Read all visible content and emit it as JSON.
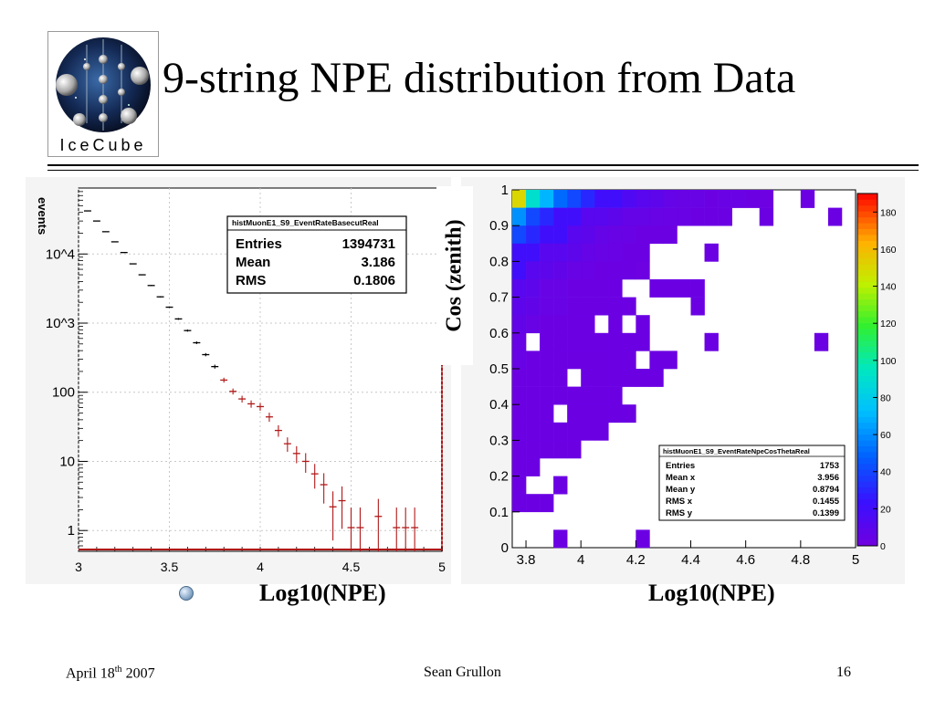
{
  "slide": {
    "title": "9-string NPE distribution from Data",
    "logo_text": "IceCube",
    "footer": {
      "date_main": "April 18",
      "date_sup": "th",
      "date_year": " 2007",
      "author": "Sean Grullon",
      "page": "16"
    },
    "bullet_label": "Log10(NPE)",
    "right_xlabel": "Log10(NPE)",
    "right_ylabel": "Cos (zenith)"
  },
  "chart_data": [
    {
      "type": "scatter",
      "yscale": "log",
      "ylabel": "events",
      "xlim": [
        3,
        5
      ],
      "ylim": [
        0.5,
        90000
      ],
      "xticks": [
        "3",
        "3.5",
        "4",
        "4.5",
        "5"
      ],
      "yticks": [
        {
          "value": 10000,
          "label": "10^4"
        },
        {
          "value": 1000,
          "label": "10^3"
        },
        {
          "value": 100,
          "label": "100"
        },
        {
          "value": 10,
          "label": "10"
        },
        {
          "value": 1,
          "label": "1"
        }
      ],
      "grid": true,
      "stats": {
        "name": "histMuonE1_S9_EventRateBasecutReal",
        "rows": [
          {
            "key": "Entries",
            "value": "1394731"
          },
          {
            "key": "Mean",
            "value": "3.186"
          },
          {
            "key": "RMS",
            "value": "0.1806"
          }
        ]
      },
      "series": [
        {
          "color": "#000000",
          "x": [
            3.05,
            3.1,
            3.15,
            3.2,
            3.25,
            3.3,
            3.35,
            3.4,
            3.45,
            3.5,
            3.55,
            3.6,
            3.65,
            3.7,
            3.75
          ],
          "y": [
            42000,
            30000,
            21000,
            15000,
            10500,
            7200,
            5000,
            3500,
            2400,
            1700,
            1150,
            780,
            520,
            350,
            235
          ]
        },
        {
          "color": "#b01818",
          "x": [
            3.8,
            3.85,
            3.9,
            3.95,
            4.0,
            4.05,
            4.1,
            4.15,
            4.2,
            4.25,
            4.3,
            4.35,
            4.4,
            4.45,
            4.5,
            4.55,
            4.65,
            4.75,
            4.8,
            4.85
          ],
          "y": [
            150,
            103,
            80,
            68,
            62,
            44,
            28,
            18,
            13,
            10,
            6.6,
            4.6,
            2.2,
            2.7,
            1.1,
            1.1,
            1.6,
            1.1,
            1.1,
            1.1
          ]
        }
      ]
    },
    {
      "type": "heatmap",
      "xlim": [
        3.75,
        5.0
      ],
      "ylim": [
        0,
        1
      ],
      "xticks": [
        "3.8",
        "4",
        "4.2",
        "4.4",
        "4.6",
        "4.8",
        "5"
      ],
      "yticks": [
        "0",
        "0.1",
        "0.2",
        "0.3",
        "0.4",
        "0.5",
        "0.6",
        "0.7",
        "0.8",
        "0.9",
        "1"
      ],
      "color_scale_max": 190,
      "color_ticks": [
        "0",
        "20",
        "40",
        "60",
        "80",
        "100",
        "120",
        "140",
        "160",
        "180"
      ],
      "stats": {
        "name": "histMuonE1_S9_EventRateNpeCosThetaReal",
        "rows": [
          {
            "key": "Entries",
            "value": "1753"
          },
          {
            "key": "Mean x",
            "value": "3.956"
          },
          {
            "key": "Mean y",
            "value": "0.8794"
          },
          {
            "key": "RMS x",
            "value": "0.1455"
          },
          {
            "key": "RMS y",
            "value": "0.1399"
          }
        ]
      },
      "x_bins_lo": [
        3.75,
        3.8,
        3.85,
        3.9,
        3.95,
        4.0,
        4.05,
        4.1,
        4.15,
        4.2,
        4.25,
        4.3,
        4.35,
        4.4,
        4.45,
        4.5,
        4.55,
        4.6,
        4.65,
        4.7,
        4.75,
        4.8,
        4.85,
        4.9,
        4.95
      ],
      "y_bins_lo": [
        0.95,
        0.9,
        0.85,
        0.8,
        0.75,
        0.7,
        0.65,
        0.6,
        0.55,
        0.5,
        0.45,
        0.4,
        0.35,
        0.3,
        0.25,
        0.2,
        0.15,
        0.1,
        0.05,
        0.0
      ],
      "cells": [
        [
          150,
          90,
          70,
          50,
          40,
          30,
          20,
          20,
          14,
          10,
          8,
          5,
          4,
          4,
          2,
          3,
          3,
          2,
          1,
          0,
          0,
          2,
          0,
          0,
          0
        ],
        [
          60,
          40,
          30,
          20,
          20,
          10,
          10,
          8,
          5,
          5,
          4,
          3,
          3,
          2,
          2,
          2,
          0,
          0,
          2,
          0,
          0,
          0,
          0,
          2,
          0
        ],
        [
          40,
          30,
          20,
          20,
          10,
          8,
          5,
          4,
          3,
          2,
          2,
          2,
          0,
          0,
          0,
          0,
          0,
          0,
          0,
          0,
          0,
          0,
          0,
          0,
          0
        ],
        [
          20,
          20,
          10,
          10,
          8,
          5,
          4,
          3,
          2,
          2,
          0,
          0,
          0,
          0,
          2,
          0,
          0,
          0,
          0,
          0,
          0,
          0,
          0,
          0,
          0
        ],
        [
          20,
          10,
          8,
          6,
          4,
          3,
          2,
          2,
          2,
          1,
          0,
          0,
          0,
          0,
          0,
          0,
          0,
          0,
          0,
          0,
          0,
          0,
          0,
          0,
          0
        ],
        [
          10,
          8,
          4,
          4,
          2,
          2,
          2,
          2,
          0,
          0,
          2,
          2,
          2,
          2,
          0,
          0,
          0,
          0,
          0,
          0,
          0,
          0,
          0,
          0,
          0
        ],
        [
          8,
          6,
          4,
          4,
          2,
          2,
          2,
          2,
          2,
          0,
          0,
          0,
          0,
          2,
          0,
          0,
          0,
          0,
          0,
          0,
          0,
          0,
          0,
          0,
          0
        ],
        [
          6,
          4,
          2,
          2,
          2,
          2,
          0,
          2,
          0,
          2,
          0,
          0,
          0,
          0,
          0,
          0,
          0,
          0,
          0,
          0,
          0,
          0,
          0,
          0,
          0
        ],
        [
          4,
          0,
          2,
          2,
          2,
          2,
          2,
          2,
          2,
          2,
          0,
          0,
          0,
          0,
          2,
          0,
          0,
          0,
          0,
          0,
          0,
          0,
          2,
          0,
          0
        ],
        [
          4,
          2,
          2,
          2,
          2,
          2,
          2,
          2,
          2,
          0,
          2,
          2,
          0,
          0,
          0,
          0,
          0,
          0,
          0,
          0,
          0,
          0,
          0,
          0,
          0
        ],
        [
          2,
          2,
          2,
          2,
          0,
          2,
          2,
          2,
          2,
          2,
          2,
          0,
          0,
          0,
          0,
          0,
          0,
          0,
          0,
          0,
          0,
          0,
          0,
          0,
          0
        ],
        [
          2,
          2,
          2,
          2,
          2,
          2,
          2,
          2,
          0,
          0,
          0,
          0,
          0,
          0,
          0,
          0,
          0,
          0,
          0,
          0,
          0,
          0,
          0,
          0,
          0
        ],
        [
          2,
          2,
          2,
          0,
          2,
          2,
          2,
          2,
          2,
          0,
          0,
          0,
          0,
          0,
          0,
          0,
          0,
          0,
          0,
          0,
          0,
          0,
          0,
          0,
          0
        ],
        [
          2,
          2,
          2,
          2,
          2,
          2,
          2,
          0,
          0,
          0,
          0,
          0,
          0,
          0,
          0,
          0,
          0,
          0,
          0,
          0,
          0,
          0,
          0,
          0,
          0
        ],
        [
          2,
          2,
          2,
          2,
          2,
          0,
          0,
          0,
          0,
          0,
          0,
          0,
          0,
          0,
          0,
          0,
          0,
          0,
          0,
          0,
          0,
          0,
          0,
          0,
          0
        ],
        [
          2,
          2,
          0,
          0,
          0,
          0,
          0,
          0,
          0,
          0,
          0,
          0,
          0,
          0,
          0,
          0,
          0,
          0,
          0,
          0,
          0,
          0,
          0,
          0,
          0
        ],
        [
          2,
          0,
          0,
          2,
          0,
          0,
          0,
          0,
          0,
          0,
          0,
          0,
          0,
          0,
          0,
          0,
          0,
          0,
          0,
          0,
          0,
          0,
          0,
          0,
          0
        ],
        [
          2,
          2,
          2,
          0,
          0,
          0,
          0,
          0,
          0,
          0,
          0,
          0,
          0,
          0,
          0,
          0,
          0,
          0,
          0,
          0,
          0,
          0,
          0,
          0,
          0
        ],
        [
          0,
          0,
          0,
          0,
          0,
          0,
          0,
          0,
          0,
          0,
          0,
          0,
          0,
          0,
          0,
          0,
          0,
          0,
          0,
          0,
          0,
          0,
          0,
          0,
          0
        ],
        [
          0,
          0,
          0,
          2,
          0,
          0,
          0,
          0,
          0,
          2,
          0,
          0,
          0,
          0,
          0,
          0,
          0,
          0,
          0,
          0,
          0,
          0,
          0,
          0,
          0
        ]
      ]
    }
  ]
}
